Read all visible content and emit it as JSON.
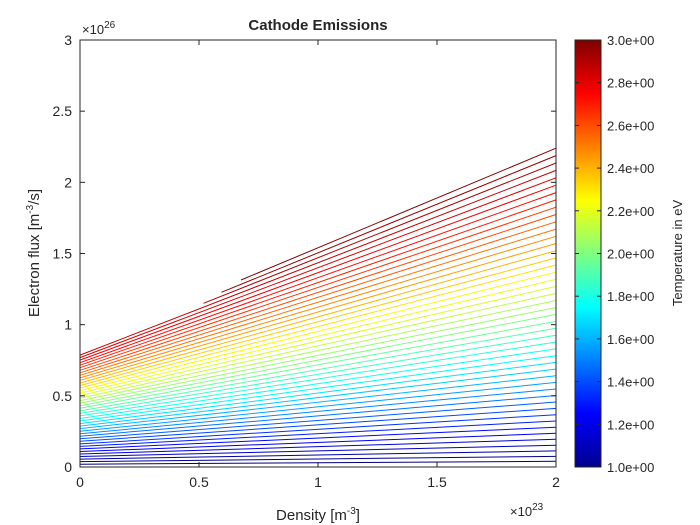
{
  "chart_data": {
    "type": "line",
    "subtype": "contour",
    "title": "Cathode Emissions",
    "xlabel": "Density [m",
    "xlabel_sup": "-3",
    "xlabel_end": "]",
    "ylabel": "Electron flux [m",
    "ylabel_sup": "-3",
    "ylabel_end": "/s]",
    "x_exponent": "×10",
    "x_exponent_power": "23",
    "y_exponent": "×10",
    "y_exponent_power": "26",
    "xlim": [
      0,
      2
    ],
    "ylim": [
      0,
      3
    ],
    "x_ticks": [
      0,
      0.5,
      1,
      1.5,
      2
    ],
    "x_tick_labels": [
      "0",
      "0.5",
      "1",
      "1.5",
      "2"
    ],
    "y_ticks": [
      0,
      0.5,
      1,
      1.5,
      2,
      2.5,
      3
    ],
    "y_tick_labels": [
      "0",
      "0.5",
      "1",
      "1.5",
      "2",
      "2.5",
      "3"
    ],
    "grid": false,
    "contour_levels": {
      "min": 1.0,
      "max": 3.0,
      "count": 47
    },
    "contour_model": {
      "note": "Isotherm family: flux = base(T) + slope(T) * density; lines start at the upper boundary",
      "y_at_x0_min": 0.02,
      "y_at_x0_max": 0.84,
      "slope_min": 0.01,
      "slope_max": 0.7,
      "boundary": [
        [
          0,
          0.8
        ],
        [
          0.5,
          1.13
        ],
        [
          1,
          1.65
        ],
        [
          1.5,
          2.18
        ],
        [
          2,
          2.6
        ]
      ]
    },
    "colorbar": {
      "label": "Temperature in eV",
      "ticks": [
        "1.0e+00",
        "1.2e+00",
        "1.4e+00",
        "1.6e+00",
        "1.8e+00",
        "2.0e+00",
        "2.2e+00",
        "2.4e+00",
        "2.6e+00",
        "2.8e+00",
        "3.0e+00"
      ],
      "colormap": "jet"
    }
  }
}
